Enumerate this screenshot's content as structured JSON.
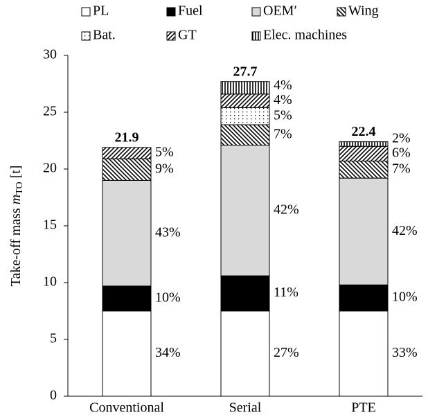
{
  "chart_data": {
    "type": "stacked-bar",
    "ylabel": [
      "Take-off mass ",
      "m",
      "TO",
      " [t]"
    ],
    "categories": [
      "Conventional",
      "Serial",
      "PTE"
    ],
    "totals": [
      21.9,
      27.7,
      22.4
    ],
    "series": [
      {
        "name": "PL",
        "color": "#ffffff",
        "pattern": "solid",
        "values": [
          7.5,
          7.5,
          7.5
        ],
        "share_labels": [
          "34%",
          "27%",
          "33%"
        ]
      },
      {
        "name": "Fuel",
        "color": "#000000",
        "pattern": "solid",
        "values": [
          2.2,
          3.1,
          2.3
        ],
        "share_labels": [
          "10%",
          "11%",
          "10%"
        ]
      },
      {
        "name": "OEM′",
        "color": "#d9d9d9",
        "pattern": "solid",
        "values": [
          9.3,
          11.5,
          9.4
        ],
        "share_labels": [
          "43%",
          "42%",
          "42%"
        ]
      },
      {
        "name": "Wing",
        "color": "#000000",
        "pattern": "back-diagonal",
        "values": [
          1.9,
          1.8,
          1.5
        ],
        "share_labels": [
          "9%",
          "7%",
          "7%"
        ]
      },
      {
        "name": "Bat.",
        "color": "#000000",
        "pattern": "dots",
        "values": [
          null,
          1.5,
          null
        ],
        "share_labels": [
          null,
          "5%",
          null
        ]
      },
      {
        "name": "GT",
        "color": "#000000",
        "pattern": "diagonal",
        "values": [
          1.0,
          1.2,
          1.3
        ],
        "share_labels": [
          "5%",
          "4%",
          "6%"
        ]
      },
      {
        "name": "Elec. machines",
        "color": "#000000",
        "pattern": "vertical",
        "values": [
          null,
          1.1,
          0.4
        ],
        "share_labels": [
          null,
          "4%",
          "2%"
        ]
      }
    ],
    "ylim": [
      0,
      30
    ],
    "yticks": [
      0,
      5,
      10,
      15,
      20,
      25,
      30
    ],
    "grid": false
  }
}
